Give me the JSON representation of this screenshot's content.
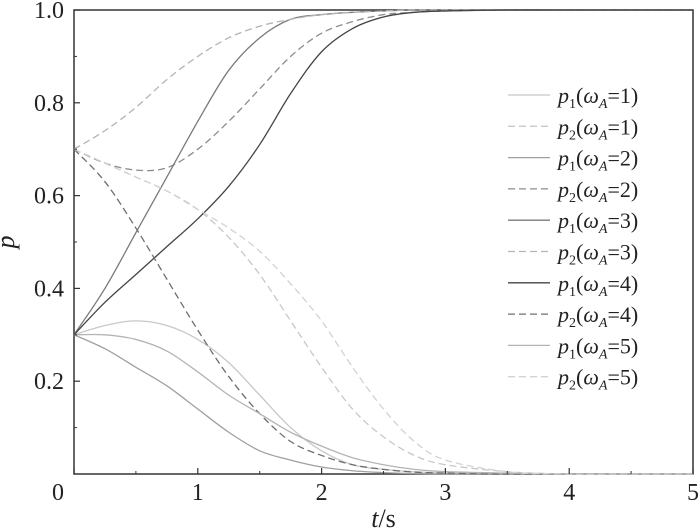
{
  "chart_data": {
    "type": "line",
    "title": "",
    "xlabel": "t/s",
    "xlabel_var": "t",
    "xlabel_unit": "/s",
    "ylabel": "p",
    "xlim": [
      0,
      5
    ],
    "ylim": [
      0,
      1.0
    ],
    "xticks": [
      0,
      1,
      2,
      3,
      4,
      5
    ],
    "xtick_labels": [
      "0",
      "1",
      "2",
      "3",
      "4",
      "5"
    ],
    "yticks": [
      0.2,
      0.4,
      0.6,
      0.8,
      1.0
    ],
    "ytick_labels": [
      "0.2",
      "0.4",
      "0.6",
      "0.8",
      "1.0"
    ],
    "grid": false,
    "legend_position": "right",
    "x": [
      0,
      0.25,
      0.5,
      0.75,
      1.0,
      1.25,
      1.5,
      1.75,
      2.0,
      2.25,
      2.5,
      2.75,
      3.0,
      3.5,
      4.0,
      4.5,
      5.0
    ],
    "series": [
      {
        "name": "p1(ωA=1)",
        "legend": {
          "var": "p",
          "sub": "1",
          "param": "ω",
          "psub": "A",
          "val": "=1)"
        },
        "color": "#c8c8c8",
        "dash": "solid",
        "values": [
          0.3,
          0.32,
          0.33,
          0.32,
          0.29,
          0.24,
          0.17,
          0.1,
          0.05,
          0.02,
          0.01,
          0.005,
          0.002,
          0.0,
          0.0,
          0.0,
          0.0
        ]
      },
      {
        "name": "p2(ωA=1)",
        "legend": {
          "var": "p",
          "sub": "2",
          "param": "ω",
          "psub": "A",
          "val": "=1)"
        },
        "color": "#c8c8c8",
        "dash": "dashed",
        "values": [
          0.7,
          0.67,
          0.64,
          0.61,
          0.57,
          0.51,
          0.43,
          0.33,
          0.23,
          0.14,
          0.08,
          0.04,
          0.02,
          0.005,
          0.0,
          0.0,
          0.0
        ]
      },
      {
        "name": "p1(ωA=2)",
        "legend": {
          "var": "p",
          "sub": "1",
          "param": "ω",
          "psub": "A",
          "val": "=2)"
        },
        "color": "#a0a0a0",
        "dash": "solid",
        "values": [
          0.3,
          0.27,
          0.23,
          0.19,
          0.14,
          0.09,
          0.05,
          0.03,
          0.015,
          0.007,
          0.003,
          0.001,
          0.0,
          0.0,
          0.0,
          0.0,
          0.0
        ]
      },
      {
        "name": "p2(ωA=2)",
        "legend": {
          "var": "p",
          "sub": "2",
          "param": "ω",
          "psub": "A",
          "val": "=2)"
        },
        "color": "#8c8c8c",
        "dash": "dashed",
        "values": [
          0.7,
          0.67,
          0.655,
          0.66,
          0.7,
          0.76,
          0.83,
          0.9,
          0.95,
          0.975,
          0.99,
          0.995,
          0.998,
          1.0,
          1.0,
          1.0,
          1.0
        ]
      },
      {
        "name": "p1(ωA=3)",
        "legend": {
          "var": "p",
          "sub": "1",
          "param": "ω",
          "psub": "A",
          "val": "=3)"
        },
        "color": "#7a7a7a",
        "dash": "solid",
        "values": [
          0.3,
          0.4,
          0.52,
          0.64,
          0.76,
          0.87,
          0.94,
          0.98,
          0.99,
          0.995,
          0.998,
          1.0,
          1.0,
          1.0,
          1.0,
          1.0,
          1.0
        ]
      },
      {
        "name": "p2(ωA=3)",
        "legend": {
          "var": "p",
          "sub": "2",
          "param": "ω",
          "psub": "A",
          "val": "=3)"
        },
        "color": "#b4b4b4",
        "dash": "dashed",
        "values": [
          0.7,
          0.74,
          0.79,
          0.85,
          0.9,
          0.94,
          0.965,
          0.98,
          0.99,
          0.995,
          0.998,
          1.0,
          1.0,
          1.0,
          1.0,
          1.0,
          1.0
        ]
      },
      {
        "name": "p1(ωA=4)",
        "legend": {
          "var": "p",
          "sub": "1",
          "param": "ω",
          "psub": "A",
          "val": "=4)"
        },
        "color": "#444444",
        "dash": "solid",
        "values": [
          0.3,
          0.37,
          0.43,
          0.49,
          0.55,
          0.62,
          0.71,
          0.82,
          0.91,
          0.96,
          0.985,
          0.995,
          0.998,
          1.0,
          1.0,
          1.0,
          1.0
        ]
      },
      {
        "name": "p2(ωA=4)",
        "legend": {
          "var": "p",
          "sub": "2",
          "param": "ω",
          "psub": "A",
          "val": "=4)"
        },
        "color": "#6e6e6e",
        "dash": "dashed",
        "values": [
          0.7,
          0.63,
          0.53,
          0.42,
          0.31,
          0.21,
          0.13,
          0.07,
          0.04,
          0.02,
          0.01,
          0.004,
          0.002,
          0.0,
          0.0,
          0.0,
          0.0
        ]
      },
      {
        "name": "p1(ωA=5)",
        "legend": {
          "var": "p",
          "sub": "1",
          "param": "ω",
          "psub": "A",
          "val": "=5)"
        },
        "color": "#b4b4b4",
        "dash": "solid",
        "values": [
          0.3,
          0.3,
          0.29,
          0.265,
          0.22,
          0.17,
          0.13,
          0.09,
          0.06,
          0.035,
          0.02,
          0.01,
          0.005,
          0.002,
          0.0,
          0.0,
          0.0
        ]
      },
      {
        "name": "p2(ωA=5)",
        "legend": {
          "var": "p",
          "sub": "2",
          "param": "ω",
          "psub": "A",
          "val": "=5)"
        },
        "color": "#d2d2d2",
        "dash": "dashed",
        "values": [
          0.7,
          0.67,
          0.64,
          0.61,
          0.57,
          0.53,
          0.48,
          0.41,
          0.33,
          0.23,
          0.14,
          0.07,
          0.03,
          0.005,
          0.0,
          0.0,
          0.0
        ]
      }
    ]
  }
}
